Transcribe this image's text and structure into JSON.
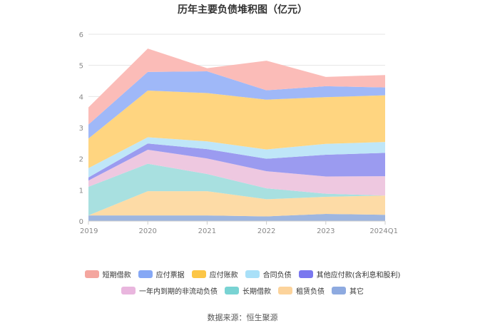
{
  "chart_data": {
    "type": "area",
    "stacked": true,
    "title": "历年主要负债堆积图（亿元）",
    "x": [
      "2019",
      "2020",
      "2021",
      "2022",
      "2023",
      "2024Q1"
    ],
    "yticks": [
      "0",
      "1",
      "2",
      "3",
      "4",
      "5",
      "6"
    ],
    "ylim": [
      0,
      6
    ],
    "grid": true,
    "legend_position": "bottom",
    "series": [
      {
        "name": "其它",
        "color": "#9eb6e0",
        "values": [
          0.18,
          0.18,
          0.18,
          0.15,
          0.23,
          0.2
        ]
      },
      {
        "name": "租赁负债",
        "color": "#fddba6",
        "values": [
          0.0,
          0.78,
          0.78,
          0.55,
          0.55,
          0.62
        ]
      },
      {
        "name": "长期借款",
        "color": "#a8e0e0",
        "values": [
          0.92,
          0.88,
          0.55,
          0.35,
          0.1,
          0.0
        ]
      },
      {
        "name": "一年内到期的非流动负债",
        "color": "#eec8e0",
        "values": [
          0.2,
          0.45,
          0.5,
          0.55,
          0.55,
          0.62
        ]
      },
      {
        "name": "其他应付款(含利息和股利)",
        "color": "#9b9bf0",
        "values": [
          0.1,
          0.2,
          0.3,
          0.4,
          0.7,
          0.75
        ]
      },
      {
        "name": "合同负债",
        "color": "#bfe6f8",
        "values": [
          0.3,
          0.2,
          0.25,
          0.3,
          0.35,
          0.35
        ]
      },
      {
        "name": "应付账款",
        "color": "#ffd580",
        "values": [
          0.95,
          1.5,
          1.55,
          1.6,
          1.5,
          1.5
        ]
      },
      {
        "name": "应付票据",
        "color": "#9fb8f8",
        "values": [
          0.45,
          0.6,
          0.7,
          0.3,
          0.35,
          0.25
        ]
      },
      {
        "name": "短期借款",
        "color": "#fbbcb8",
        "values": [
          0.55,
          0.75,
          0.1,
          0.95,
          0.3,
          0.4
        ]
      }
    ]
  },
  "legend": {
    "row1": [
      {
        "name": "短期借款",
        "color": "#f4a69f"
      },
      {
        "name": "应付票据",
        "color": "#86a8f5"
      },
      {
        "name": "应付账款",
        "color": "#fcc646"
      },
      {
        "name": "合同负债",
        "color": "#a9e0f8"
      },
      {
        "name": "其他应付款(含利息和股利)",
        "color": "#7a78ef"
      }
    ],
    "row2": [
      {
        "name": "一年内到期的非流动负债",
        "color": "#e9b6de"
      },
      {
        "name": "长期借款",
        "color": "#79d3d3"
      },
      {
        "name": "租赁负债",
        "color": "#fcd39b"
      },
      {
        "name": "其它",
        "color": "#8eaae0"
      }
    ]
  },
  "source": "数据来源：恒生聚源"
}
